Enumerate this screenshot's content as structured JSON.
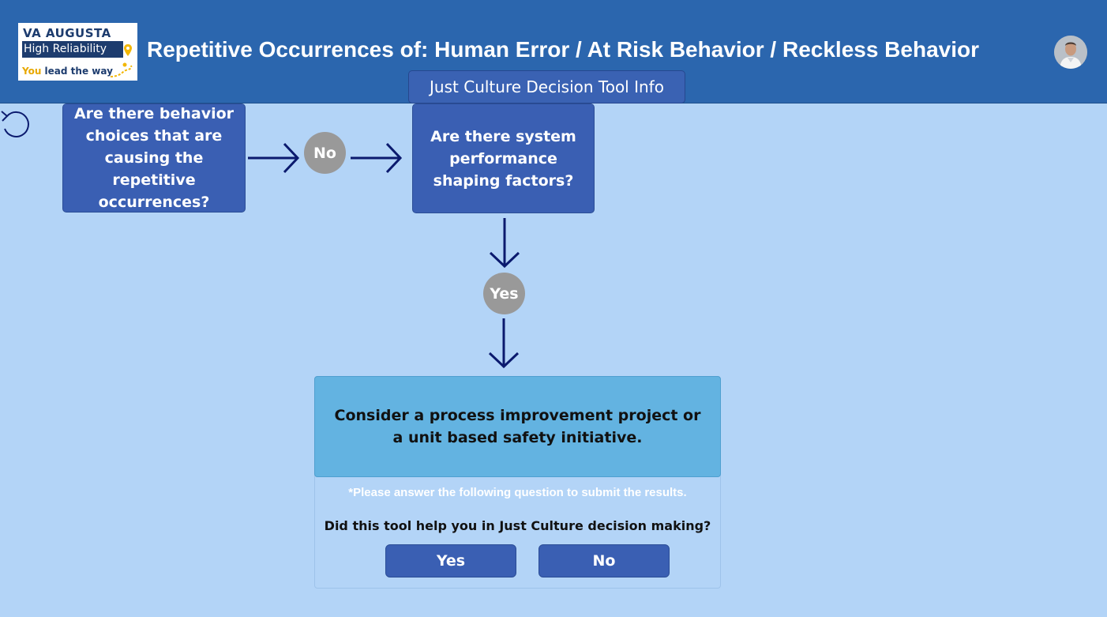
{
  "header": {
    "title": "Repetitive Occurrences of: Human Error / At Risk Behavior / Reckless Behavior",
    "info_button": "Just Culture Decision Tool Info",
    "logo": {
      "line1": "VA AUGUSTA",
      "line2": "High Reliability",
      "line3_you": "You",
      "line3_rest": " lead the way"
    }
  },
  "flow": {
    "question1": "Are there behavior choices that are causing the repetitive occurrences?",
    "answer1": "No",
    "question2": "Are there system performance shaping factors?",
    "answer2": "Yes",
    "result": "Consider a process improvement project or a unit based safety initiative."
  },
  "feedback": {
    "note": "*Please answer the following question to submit the results.",
    "question": "Did this tool help you in Just Culture decision making?",
    "yes_label": "Yes",
    "no_label": "No"
  },
  "colors": {
    "background": "#b3d4f7",
    "header": "#2b66ae",
    "box": "#3a5fb3",
    "circle": "#999999",
    "result_box": "#63b3e1",
    "arrow": "#0b1a6e"
  },
  "icons": {
    "back": "back-arrow-icon",
    "avatar": "user-avatar"
  }
}
